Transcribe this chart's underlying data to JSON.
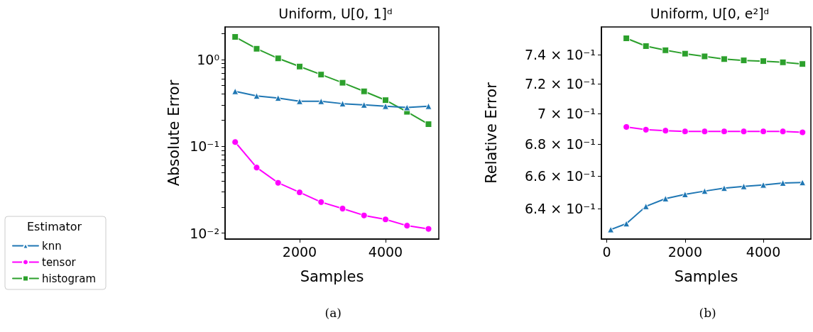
{
  "chart_data": [
    {
      "type": "line",
      "title": "Uniform, U[0, 1]ᵈ",
      "xlabel": "Samples",
      "ylabel": "Absolute Error",
      "legend_title": "Estimator",
      "legend": "left",
      "log": "y",
      "grid": false,
      "line_style": "solid",
      "annotations": [
        "(a)"
      ],
      "xlim": [
        265,
        5240
      ],
      "xticks": [
        2000,
        4000
      ],
      "ylim": [
        0.00855,
        2.37
      ],
      "yticks": [
        {
          "value": 0.01,
          "label": "10⁻²"
        },
        {
          "value": 0.1,
          "label": "10⁻¹"
        },
        {
          "value": 1,
          "label": "10⁰"
        },
        {
          "value": 0.02,
          "label": null
        },
        {
          "value": 0.03,
          "label": null
        },
        {
          "value": 0.04,
          "label": null
        },
        {
          "value": 0.05,
          "label": null
        },
        {
          "value": 0.06,
          "label": null
        },
        {
          "value": 0.07,
          "label": null
        },
        {
          "value": 0.08,
          "label": null
        },
        {
          "value": 0.09,
          "label": null
        },
        {
          "value": 0.2,
          "label": null
        },
        {
          "value": 0.3,
          "label": null
        },
        {
          "value": 0.4,
          "label": null
        },
        {
          "value": 0.5,
          "label": null
        },
        {
          "value": 0.6,
          "label": null
        },
        {
          "value": 0.7,
          "label": null
        },
        {
          "value": 0.8,
          "label": null
        },
        {
          "value": 0.9,
          "label": null
        },
        {
          "value": 2,
          "label": null
        }
      ],
      "series": [
        {
          "name": "knn",
          "color": "#1f77b4",
          "marker": "triangle",
          "x": [
            500,
            1000,
            1500,
            2000,
            2500,
            3000,
            3500,
            4000,
            4500,
            5000
          ],
          "values": [
            0.43,
            0.38,
            0.36,
            0.33,
            0.33,
            0.31,
            0.3,
            0.29,
            0.28,
            0.29
          ]
        },
        {
          "name": "tensor",
          "color": "#ff00ff",
          "marker": "circle",
          "x": [
            500,
            1000,
            1500,
            2000,
            2500,
            3000,
            3500,
            4000,
            4500,
            5000
          ],
          "values": [
            0.112,
            0.057,
            0.038,
            0.0295,
            0.0228,
            0.0192,
            0.016,
            0.0144,
            0.0122,
            0.0112
          ]
        },
        {
          "name": "histogram",
          "color": "#2ca02c",
          "marker": "square",
          "x": [
            500,
            1000,
            1500,
            2000,
            2500,
            3000,
            3500,
            4000,
            4500,
            5000
          ],
          "values": [
            1.82,
            1.33,
            1.03,
            0.83,
            0.67,
            0.54,
            0.43,
            0.34,
            0.25,
            0.18
          ]
        }
      ]
    },
    {
      "type": "line",
      "title": "Uniform, U[0, e²]ᵈ",
      "xlabel": "Samples",
      "ylabel": "Relative Error",
      "log": "y",
      "grid": false,
      "line_style": "solid",
      "annotations": [
        "(b)"
      ],
      "xlim": [
        -138,
        5215
      ],
      "xticks": [
        0,
        2000,
        4000
      ],
      "ylim": [
        0.6218,
        0.7596
      ],
      "yticks": [
        {
          "value": 0.64,
          "label": "6.4 × 10⁻¹"
        },
        {
          "value": 0.66,
          "label": "6.6 × 10⁻¹"
        },
        {
          "value": 0.68,
          "label": "6.8 × 10⁻¹"
        },
        {
          "value": 0.7,
          "label": "7 × 10⁻¹"
        },
        {
          "value": 0.72,
          "label": "7.2 × 10⁻¹"
        },
        {
          "value": 0.74,
          "label": "7.4 × 10⁻¹"
        }
      ],
      "series": [
        {
          "color": "#1f77b4",
          "marker": "triangle",
          "x": [
            100,
            500,
            1000,
            1500,
            2000,
            2500,
            3000,
            3500,
            4000,
            4500,
            5000
          ],
          "values": [
            0.6274,
            0.6309,
            0.6413,
            0.646,
            0.6486,
            0.6506,
            0.6524,
            0.6535,
            0.6544,
            0.6556,
            0.6559
          ]
        },
        {
          "color": "#ff00ff",
          "marker": "circle",
          "x": [
            500,
            1000,
            1500,
            2000,
            2500,
            3000,
            3500,
            4000,
            4500,
            5000
          ],
          "values": [
            0.6912,
            0.6894,
            0.6888,
            0.6883,
            0.6883,
            0.6883,
            0.6883,
            0.6883,
            0.6883,
            0.6877
          ]
        },
        {
          "color": "#2ca02c",
          "marker": "square",
          "x": [
            500,
            1000,
            1500,
            2000,
            2500,
            3000,
            3500,
            4000,
            4500,
            5000
          ],
          "values": [
            0.7515,
            0.746,
            0.7431,
            0.7407,
            0.7388,
            0.7369,
            0.736,
            0.7355,
            0.7347,
            0.7335
          ]
        }
      ]
    }
  ]
}
